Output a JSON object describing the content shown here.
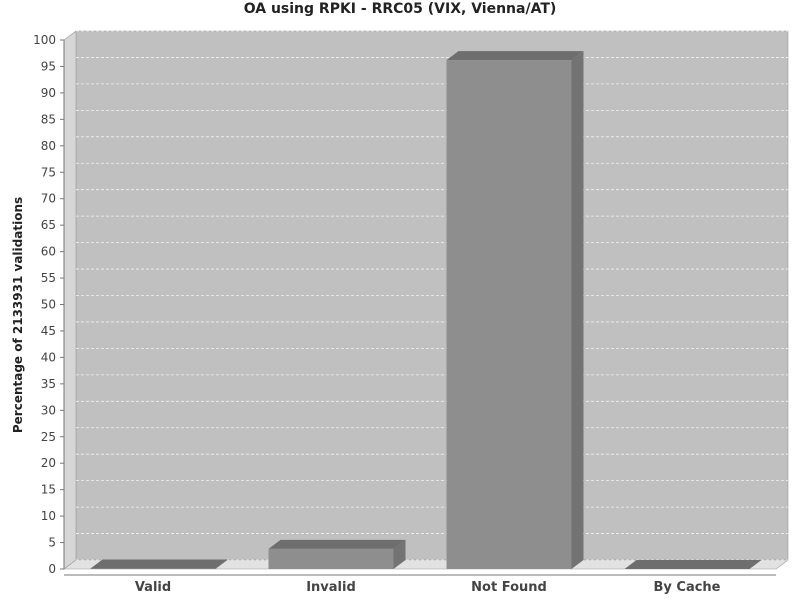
{
  "chart_data": {
    "type": "bar",
    "title": "OA using RPKI - RRC05 (VIX, Vienna/AT)",
    "xlabel": "",
    "ylabel": "Percentage of 2133931 validations",
    "categories": [
      "Valid",
      "Invalid",
      "Not Found",
      "By Cache"
    ],
    "values": [
      0.1,
      3.8,
      96.2,
      0.0
    ],
    "ylim": [
      0,
      100
    ],
    "yticks": [
      0,
      5,
      10,
      15,
      20,
      25,
      30,
      35,
      40,
      45,
      50,
      55,
      60,
      65,
      70,
      75,
      80,
      85,
      90,
      95,
      100
    ],
    "grid": true,
    "legend": "none",
    "colors": {
      "plot_background": "#c0c0c0",
      "plot_side_wall": "#d6d6d6",
      "floor": "#e2e2e2",
      "bar_front": "#8e8e8e",
      "bar_top": "#6e6e6e",
      "bar_side": "#737373",
      "gridline": "#f2f2f2"
    }
  }
}
